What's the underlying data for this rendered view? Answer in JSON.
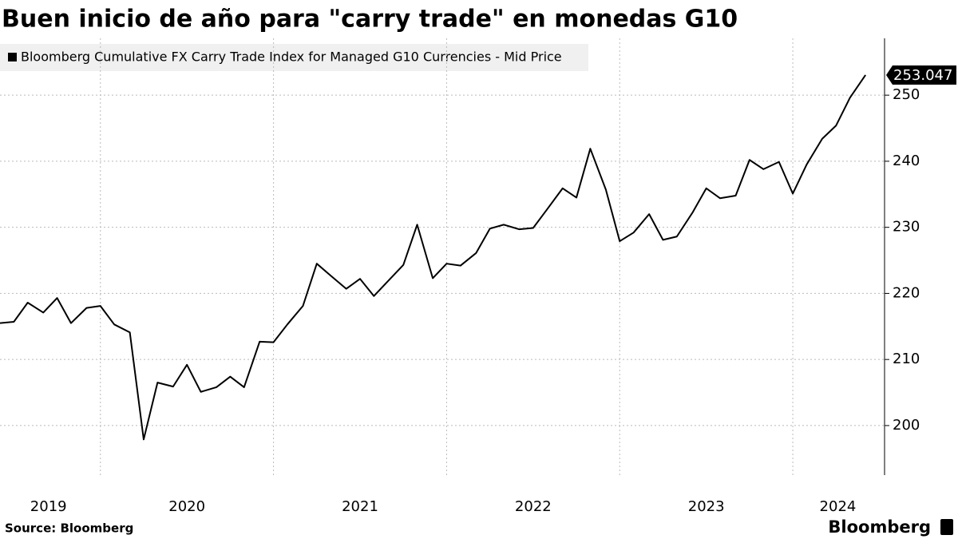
{
  "chart_data": {
    "type": "line",
    "title": "Buen inicio de año para \"carry trade\" en monedas G10",
    "source": "Source: Bloomberg",
    "brand": "Bloomberg",
    "x": [
      2019.42,
      2019.5,
      2019.58,
      2019.67,
      2019.75,
      2019.83,
      2019.92,
      2020.0,
      2020.08,
      2020.17,
      2020.25,
      2020.33,
      2020.42,
      2020.5,
      2020.58,
      2020.67,
      2020.75,
      2020.83,
      2020.92,
      2021.0,
      2021.08,
      2021.17,
      2021.25,
      2021.33,
      2021.42,
      2021.5,
      2021.58,
      2021.67,
      2021.75,
      2021.83,
      2021.92,
      2022.0,
      2022.08,
      2022.17,
      2022.25,
      2022.33,
      2022.42,
      2022.5,
      2022.58,
      2022.67,
      2022.75,
      2022.83,
      2022.92,
      2023.0,
      2023.08,
      2023.17,
      2023.25,
      2023.33,
      2023.42,
      2023.5,
      2023.58,
      2023.67,
      2023.75,
      2023.83,
      2023.92,
      2024.0,
      2024.08,
      2024.17,
      2024.25,
      2024.33,
      2024.42
    ],
    "series": [
      {
        "name": "Bloomberg Cumulative FX Carry Trade Index for Managed G10 Currencies - Mid Price",
        "color": "#000000",
        "values": [
          215.5,
          215.7,
          218.6,
          217.1,
          219.3,
          215.5,
          217.8,
          218.1,
          215.3,
          214.1,
          197.9,
          206.5,
          205.9,
          209.2,
          205.1,
          205.8,
          207.4,
          205.8,
          212.7,
          212.6,
          215.3,
          218.1,
          224.5,
          222.7,
          220.7,
          222.2,
          219.6,
          222.1,
          224.3,
          230.4,
          222.3,
          224.5,
          224.2,
          226.1,
          229.8,
          230.4,
          229.7,
          229.9,
          232.7,
          235.9,
          234.5,
          241.9,
          235.7,
          227.9,
          229.2,
          232.0,
          228.1,
          228.6,
          232.2,
          235.9,
          234.4,
          234.8,
          240.2,
          238.8,
          239.9,
          235.1,
          239.5,
          243.4,
          245.4,
          249.6,
          253.047
        ]
      }
    ],
    "xlim": [
      2019.42,
      2024.53
    ],
    "xgrid": [
      2020,
      2021,
      2022,
      2023,
      2024
    ],
    "xticks": [
      {
        "value": 2019.7,
        "label": "2019"
      },
      {
        "value": 2020.5,
        "label": "2020"
      },
      {
        "value": 2021.5,
        "label": "2021"
      },
      {
        "value": 2022.5,
        "label": "2022"
      },
      {
        "value": 2023.5,
        "label": "2023"
      },
      {
        "value": 2024.26,
        "label": "2024"
      }
    ],
    "ylim": [
      192.5,
      258.6
    ],
    "yticks": [
      200,
      210,
      220,
      230,
      240,
      250
    ],
    "grid": true
  }
}
